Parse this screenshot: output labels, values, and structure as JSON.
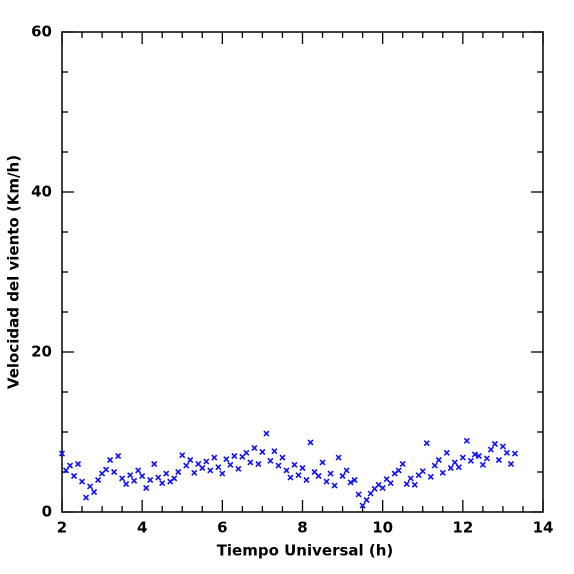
{
  "chart_data": {
    "type": "scatter",
    "marker": "x",
    "color": "#1010ff",
    "xlabel": "Tiempo Universal (h)",
    "ylabel": "Velocidad del viento (Km/h)",
    "xlim": [
      2,
      14
    ],
    "ylim": [
      0,
      60
    ],
    "xticks": [
      2,
      4,
      6,
      8,
      10,
      12,
      14
    ],
    "yticks": [
      0,
      20,
      40,
      60
    ],
    "xticks_minor": [
      2.5,
      3,
      3.5,
      4.5,
      5,
      5.5,
      6.5,
      7,
      7.5,
      8.5,
      9,
      9.5,
      10.5,
      11,
      11.5,
      12.5,
      13,
      13.5
    ],
    "yticks_minor": [
      5,
      10,
      15,
      25,
      30,
      35,
      45,
      50,
      55
    ],
    "x": [
      2.0,
      2.1,
      2.2,
      2.3,
      2.4,
      2.5,
      2.6,
      2.7,
      2.8,
      2.9,
      3.0,
      3.1,
      3.2,
      3.3,
      3.4,
      3.5,
      3.6,
      3.7,
      3.8,
      3.9,
      4.0,
      4.1,
      4.2,
      4.3,
      4.4,
      4.5,
      4.6,
      4.7,
      4.8,
      4.9,
      5.0,
      5.1,
      5.2,
      5.3,
      5.4,
      5.5,
      5.6,
      5.7,
      5.8,
      5.9,
      6.0,
      6.1,
      6.2,
      6.3,
      6.4,
      6.5,
      6.6,
      6.7,
      6.8,
      6.9,
      7.0,
      7.1,
      7.2,
      7.3,
      7.4,
      7.5,
      7.6,
      7.7,
      7.8,
      7.9,
      8.0,
      8.1,
      8.2,
      8.3,
      8.4,
      8.5,
      8.6,
      8.7,
      8.8,
      8.9,
      9.0,
      9.1,
      9.2,
      9.3,
      9.4,
      9.5,
      9.6,
      9.7,
      9.8,
      9.9,
      10.0,
      10.1,
      10.2,
      10.3,
      10.4,
      10.5,
      10.6,
      10.7,
      10.8,
      10.9,
      11.0,
      11.1,
      11.2,
      11.3,
      11.4,
      11.5,
      11.6,
      11.7,
      11.8,
      11.9,
      12.0,
      12.1,
      12.2,
      12.3,
      12.4,
      12.5,
      12.6,
      12.7,
      12.8,
      12.9,
      13.0,
      13.1,
      13.2,
      13.3
    ],
    "values": [
      7.3,
      5.2,
      5.8,
      4.5,
      6.0,
      3.8,
      1.8,
      3.2,
      2.5,
      4.0,
      4.8,
      5.3,
      6.5,
      5.0,
      7.0,
      4.2,
      3.5,
      4.6,
      3.9,
      5.2,
      4.5,
      3.0,
      4.0,
      6.0,
      4.3,
      3.6,
      4.8,
      3.8,
      4.2,
      5.0,
      7.1,
      5.8,
      6.5,
      4.9,
      6.0,
      5.5,
      6.3,
      5.2,
      6.8,
      5.6,
      4.8,
      6.6,
      5.9,
      7.0,
      5.4,
      6.9,
      7.4,
      6.2,
      8.0,
      6.0,
      7.5,
      9.8,
      6.4,
      7.6,
      5.8,
      6.8,
      5.2,
      4.3,
      5.9,
      4.6,
      5.5,
      4.0,
      8.7,
      5.0,
      4.5,
      6.2,
      3.8,
      4.8,
      3.3,
      6.8,
      4.5,
      5.2,
      3.7,
      4.0,
      2.2,
      0.8,
      1.5,
      2.3,
      2.9,
      3.4,
      3.0,
      4.1,
      3.6,
      4.8,
      5.2,
      6.0,
      3.5,
      4.2,
      3.4,
      4.6,
      5.1,
      8.6,
      4.4,
      5.8,
      6.5,
      4.9,
      7.4,
      5.5,
      6.2,
      5.6,
      6.8,
      8.9,
      6.4,
      7.2,
      7.0,
      5.9,
      6.7,
      7.8,
      8.5,
      6.5,
      8.2,
      7.4,
      6.0,
      7.3
    ]
  }
}
